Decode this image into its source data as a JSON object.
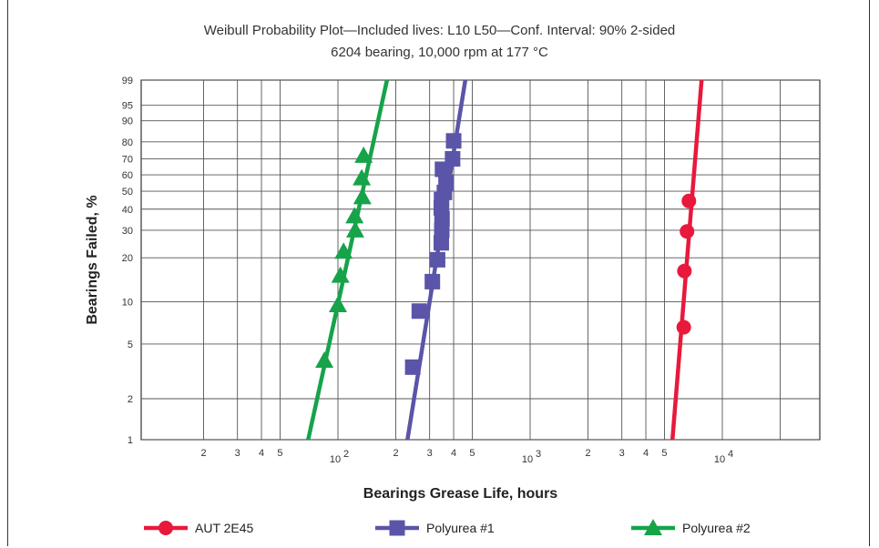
{
  "chart_data": {
    "type": "scatter",
    "title": "Weibull Probability Plot—Included lives: L10 L50—Conf. Interval: 90% 2-sided",
    "subtitle": "6204 bearing, 10,000 rpm at 177 °C",
    "xlabel": "Bearings Grease Life, hours",
    "ylabel": "Bearings Failed, %",
    "x_scale": "log",
    "y_scale": "weibull",
    "xlim": [
      10,
      30000
    ],
    "ylim": [
      1,
      99
    ],
    "grid": true,
    "legend_position": "bottom",
    "x_ticks": [
      {
        "v": 20,
        "label": "2"
      },
      {
        "v": 30,
        "label": "3"
      },
      {
        "v": 40,
        "label": "4"
      },
      {
        "v": 50,
        "label": "5"
      },
      {
        "v": 100,
        "label": "10",
        "exp": "2"
      },
      {
        "v": 200,
        "label": "2"
      },
      {
        "v": 300,
        "label": "3"
      },
      {
        "v": 400,
        "label": "4"
      },
      {
        "v": 500,
        "label": "5"
      },
      {
        "v": 1000,
        "label": "10",
        "exp": "3"
      },
      {
        "v": 2000,
        "label": "2"
      },
      {
        "v": 3000,
        "label": "3"
      },
      {
        "v": 4000,
        "label": "4"
      },
      {
        "v": 5000,
        "label": "5"
      },
      {
        "v": 10000,
        "label": "10",
        "exp": "4"
      }
    ],
    "x_grid_lines": [
      20,
      30,
      40,
      50,
      100,
      200,
      300,
      400,
      500,
      1000,
      2000,
      3000,
      4000,
      5000,
      10000,
      20000
    ],
    "y_ticks": [
      1,
      2,
      5,
      10,
      20,
      30,
      40,
      50,
      60,
      70,
      80,
      90,
      95,
      99
    ],
    "series": [
      {
        "name": "AUT 2E45",
        "color": "#e8193c",
        "marker": "circle",
        "points": [
          [
            6300,
            6.6
          ],
          [
            6350,
            16.3
          ],
          [
            6550,
            29.5
          ],
          [
            6700,
            44.4
          ]
        ],
        "fit_line": [
          [
            5500,
            1
          ],
          [
            7800,
            99
          ]
        ]
      },
      {
        "name": "Polyurea #1",
        "color": "#5a55a8",
        "marker": "square",
        "points": [
          [
            245,
            3.4
          ],
          [
            265,
            8.6
          ],
          [
            310,
            13.8
          ],
          [
            330,
            19.4
          ],
          [
            345,
            25.0
          ],
          [
            347,
            30.0
          ],
          [
            348,
            35.3
          ],
          [
            345,
            40.6
          ],
          [
            346,
            45.1
          ],
          [
            358,
            49.3
          ],
          [
            365,
            55.0
          ],
          [
            350,
            63.5
          ],
          [
            395,
            70.0
          ],
          [
            400,
            80.5
          ]
        ],
        "fit_line": [
          [
            230,
            1
          ],
          [
            460,
            99
          ]
        ]
      },
      {
        "name": "Polyurea #2",
        "color": "#16a34a",
        "marker": "triangle",
        "points": [
          [
            85,
            3.8
          ],
          [
            100,
            9.5
          ],
          [
            103,
            15.2
          ],
          [
            107,
            22.0
          ],
          [
            123,
            30.0
          ],
          [
            122,
            36.5
          ],
          [
            134,
            46.7
          ],
          [
            133,
            58.0
          ],
          [
            136,
            72.0
          ]
        ],
        "fit_line": [
          [
            70,
            1
          ],
          [
            180,
            99
          ]
        ]
      }
    ]
  }
}
